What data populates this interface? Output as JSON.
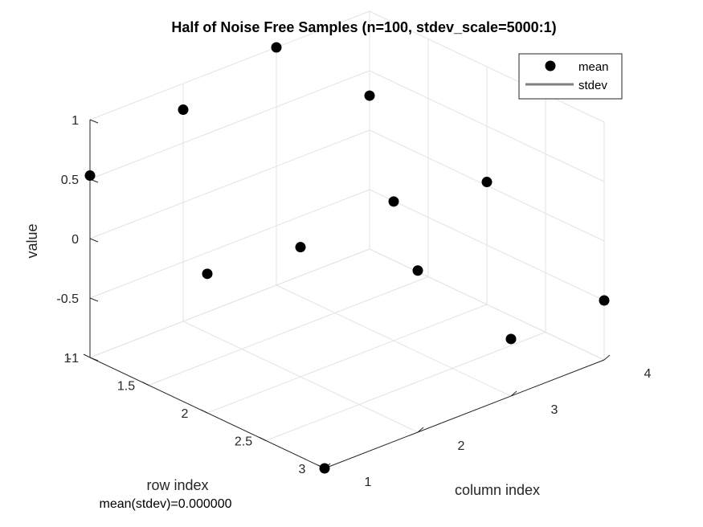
{
  "chart_data": {
    "type": "scatter",
    "title": "Half of Noise Free Samples (n=100, stdev_scale=5000:1)",
    "xlabel": "column index",
    "ylabel": "row index",
    "zlabel": "value",
    "note": "mean(stdev)=0.000000",
    "xlim": [
      1,
      4
    ],
    "ylim": [
      1,
      3
    ],
    "zlim": [
      -1,
      1
    ],
    "xticks": [
      "1",
      "2",
      "3",
      "4"
    ],
    "yticks": [
      "1",
      "1.5",
      "2",
      "2.5",
      "3"
    ],
    "zticks": [
      "-1",
      "-0.5",
      "0",
      "0.5",
      "1"
    ],
    "grid": true,
    "legend": {
      "placement": "top-right",
      "entries": [
        "mean",
        "stdev"
      ]
    },
    "colors": {
      "mean": "#000000",
      "stdev": "#808080"
    },
    "series": [
      {
        "name": "mean",
        "points": [
          {
            "x": 1,
            "y": 1,
            "z": 0.53
          },
          {
            "x": 1,
            "y": 2,
            "z": 0.17
          },
          {
            "x": 1,
            "y": 3,
            "z": -1.0
          },
          {
            "x": 2,
            "y": 1,
            "z": 0.78
          },
          {
            "x": 2,
            "y": 2,
            "z": 0.09
          },
          {
            "x": 2,
            "y": 3,
            "z": 0.36
          },
          {
            "x": 3,
            "y": 1,
            "z": 1.0
          },
          {
            "x": 3,
            "y": 2,
            "z": 0.17
          },
          {
            "x": 3,
            "y": 3,
            "z": -0.52
          },
          {
            "x": 4,
            "y": 1,
            "z": 0.29
          },
          {
            "x": 4,
            "y": 2,
            "z": 0.03
          },
          {
            "x": 4,
            "y": 3,
            "z": -0.5
          }
        ]
      },
      {
        "name": "stdev",
        "points": []
      }
    ]
  }
}
